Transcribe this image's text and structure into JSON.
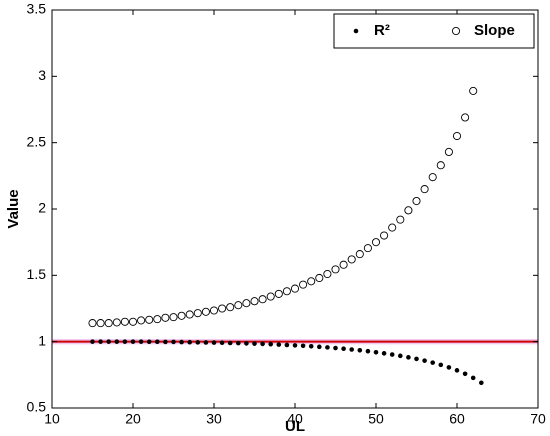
{
  "chart_data": {
    "type": "scatter",
    "xlabel": "UL",
    "ylabel": "Value",
    "x": [
      15,
      16,
      17,
      18,
      19,
      20,
      21,
      22,
      23,
      24,
      25,
      26,
      27,
      28,
      29,
      30,
      31,
      32,
      33,
      34,
      35,
      36,
      37,
      38,
      39,
      40,
      41,
      42,
      43,
      44,
      45,
      46,
      47,
      48,
      49,
      50,
      51,
      52,
      53,
      54,
      55,
      56,
      57,
      58,
      59,
      60,
      61,
      62,
      63
    ],
    "series": [
      {
        "name": "R²",
        "color": "#000000",
        "marker": "filled",
        "values": [
          1.0,
          1.0,
          1.0,
          1.0,
          1.0,
          1.0,
          1.0,
          0.999,
          0.999,
          0.998,
          0.998,
          0.997,
          0.996,
          0.995,
          0.994,
          0.993,
          0.992,
          0.99,
          0.989,
          0.987,
          0.985,
          0.983,
          0.981,
          0.978,
          0.975,
          0.972,
          0.969,
          0.965,
          0.961,
          0.957,
          0.952,
          0.947,
          0.941,
          0.935,
          0.928,
          0.92,
          0.912,
          0.903,
          0.893,
          0.882,
          0.87,
          0.857,
          0.842,
          0.825,
          0.806,
          0.784,
          0.758,
          0.727,
          0.69
        ]
      },
      {
        "name": "Slope",
        "color": "#000000",
        "marker": "open",
        "values": [
          1.14,
          1.14,
          1.14,
          1.145,
          1.15,
          1.15,
          1.16,
          1.165,
          1.17,
          1.18,
          1.185,
          1.195,
          1.205,
          1.215,
          1.225,
          1.235,
          1.25,
          1.26,
          1.275,
          1.29,
          1.305,
          1.32,
          1.34,
          1.36,
          1.38,
          1.4,
          1.43,
          1.455,
          1.48,
          1.51,
          1.545,
          1.58,
          1.62,
          1.66,
          1.705,
          1.75,
          1.8,
          1.86,
          1.92,
          1.99,
          2.06,
          2.15,
          2.24,
          2.33,
          2.43,
          2.55,
          2.69,
          2.89,
          null
        ]
      }
    ],
    "reference_line": {
      "value": 1,
      "color": "#cc0000"
    },
    "reference_band": {
      "range": [
        0.98,
        1.02
      ],
      "color": "#f2c8f2"
    },
    "xlim": [
      10,
      70
    ],
    "xticks": [
      10,
      20,
      30,
      40,
      50,
      60,
      70
    ],
    "ylim": [
      0.5,
      3.5
    ],
    "yticks": [
      0.5,
      1,
      1.5,
      2,
      2.5,
      3,
      3.5
    ],
    "grid": false,
    "legend": "upper right"
  }
}
